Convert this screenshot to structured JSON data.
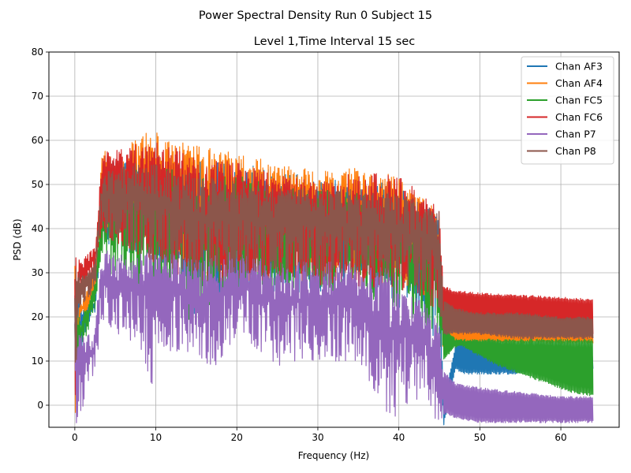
{
  "chart_data": {
    "type": "line",
    "suptitle": "Power Spectral Density Run 0 Subject 15",
    "title": "Level 1,Time Interval 15 sec",
    "xlabel": "Frequency (Hz)",
    "ylabel": "PSD (dB)",
    "xlim": [
      -3.2,
      67.2
    ],
    "ylim": [
      -5,
      80
    ],
    "xticks": [
      0,
      10,
      20,
      30,
      40,
      50,
      60
    ],
    "yticks": [
      0,
      10,
      20,
      30,
      40,
      50,
      60,
      70,
      80
    ],
    "grid": true,
    "legend_position": "top-right",
    "x_range": [
      0,
      64
    ],
    "sample_spacing": 0.0667,
    "series": [
      {
        "name": "Chan AF3",
        "color": "#1f77b4",
        "envelope_x": [
          0,
          0.5,
          1.5,
          2.5,
          3.3,
          4,
          6,
          8,
          10,
          12,
          15,
          20,
          25,
          30,
          35,
          40,
          43,
          45,
          45.5,
          47,
          48,
          50,
          55,
          60,
          64
        ],
        "upper": [
          33,
          24,
          24,
          24,
          50,
          55,
          56,
          56,
          58,
          56,
          55,
          56,
          53,
          52,
          51,
          50,
          46,
          44,
          0,
          14,
          15,
          14,
          13,
          12,
          11
        ],
        "lower": [
          -5,
          10,
          18,
          21,
          38,
          36,
          35,
          34,
          32,
          28,
          20,
          24,
          26,
          25,
          30,
          22,
          18,
          14,
          -5,
          8,
          7,
          7,
          7,
          8,
          8
        ]
      },
      {
        "name": "Chan AF4",
        "color": "#ff7f0e",
        "envelope_x": [
          0,
          0.5,
          1.5,
          2.5,
          3.3,
          4,
          6,
          8,
          9,
          10,
          12,
          15,
          20,
          25,
          30,
          35,
          40,
          43,
          45,
          45.5,
          47,
          50,
          55,
          60,
          64
        ],
        "upper": [
          35,
          22,
          26,
          32,
          58,
          58,
          57,
          62,
          63,
          62,
          60,
          59,
          57,
          55,
          53,
          54,
          52,
          47,
          45,
          22,
          18,
          17,
          17,
          17,
          17
        ],
        "lower": [
          -5,
          18,
          20,
          25,
          44,
          40,
          38,
          37,
          36,
          36,
          34,
          32,
          30,
          30,
          30,
          30,
          28,
          25,
          20,
          12,
          14,
          14,
          14,
          14,
          14
        ]
      },
      {
        "name": "Chan FC5",
        "color": "#2ca02c",
        "envelope_x": [
          0,
          0.5,
          1.5,
          2.5,
          3.3,
          4,
          6,
          8,
          10,
          12,
          15,
          20,
          25,
          30,
          35,
          40,
          43,
          45,
          45.5,
          47,
          48,
          50,
          52,
          55,
          58,
          61,
          64
        ],
        "upper": [
          32,
          20,
          22,
          28,
          50,
          52,
          53,
          54,
          55,
          54,
          52,
          52,
          50,
          49,
          48,
          46,
          44,
          40,
          18,
          15,
          15,
          15,
          15,
          15,
          15,
          15,
          15
        ],
        "lower": [
          -5,
          11,
          16,
          21,
          35,
          30,
          28,
          24,
          26,
          22,
          18,
          24,
          26,
          26,
          25,
          22,
          18,
          14,
          10,
          13,
          13,
          11,
          9,
          7,
          5,
          3,
          2
        ]
      },
      {
        "name": "Chan FC6",
        "color": "#d62728",
        "envelope_x": [
          0,
          0.5,
          1.5,
          2.5,
          3.3,
          4,
          6,
          8,
          10,
          12,
          15,
          20,
          25,
          30,
          35,
          40,
          43,
          45,
          45.5,
          47,
          50,
          55,
          60,
          64
        ],
        "upper": [
          35,
          33,
          34,
          36,
          56,
          58,
          58,
          60,
          60,
          59,
          56,
          55,
          52,
          51,
          53,
          52,
          48,
          45,
          27,
          26,
          25.5,
          25,
          24.5,
          24
        ],
        "lower": [
          -5,
          25,
          27,
          30,
          40,
          38,
          36,
          34,
          32,
          30,
          28,
          28,
          28,
          27,
          27,
          26,
          24,
          20,
          20,
          20,
          19,
          18,
          17,
          16
        ]
      },
      {
        "name": "Chan P7",
        "color": "#9467bd",
        "envelope_x": [
          0,
          0.5,
          1.5,
          2.5,
          3.3,
          4,
          6,
          8,
          9.5,
          10,
          12,
          15,
          17,
          20,
          25,
          30,
          35,
          39.5,
          40,
          41,
          43,
          45,
          45.5,
          47,
          50,
          55,
          60,
          64
        ],
        "upper": [
          20,
          16,
          17,
          17,
          35,
          35,
          34,
          35,
          36,
          34,
          35,
          33,
          34,
          35,
          32,
          33,
          32,
          31,
          28,
          26,
          24,
          18,
          8,
          5,
          4,
          3,
          2,
          2
        ],
        "lower": [
          -5,
          -3,
          2,
          6,
          20,
          18,
          14,
          14,
          4,
          14,
          12,
          12,
          8,
          16,
          9,
          10,
          10,
          -5,
          4,
          0,
          2,
          -5,
          -2,
          -3,
          -4,
          -4,
          -4,
          -4
        ]
      },
      {
        "name": "Chan P8",
        "color": "#8c564b",
        "envelope_x": [
          0,
          0.5,
          1.5,
          2.5,
          3.3,
          4,
          6,
          8,
          10,
          12,
          15,
          20,
          25,
          30,
          35,
          40,
          43,
          45,
          45.5,
          47,
          50,
          55,
          60,
          64
        ],
        "upper": [
          33,
          30,
          31,
          33,
          52,
          53,
          54,
          55,
          55,
          54,
          52,
          51,
          50,
          49,
          49,
          48,
          46,
          44,
          24,
          22,
          21,
          21,
          20,
          20
        ],
        "lower": [
          0,
          22,
          24,
          26,
          40,
          38,
          36,
          34,
          32,
          31,
          30,
          30,
          30,
          29,
          30,
          28,
          26,
          22,
          16,
          16,
          16,
          15,
          15,
          15
        ]
      }
    ]
  }
}
